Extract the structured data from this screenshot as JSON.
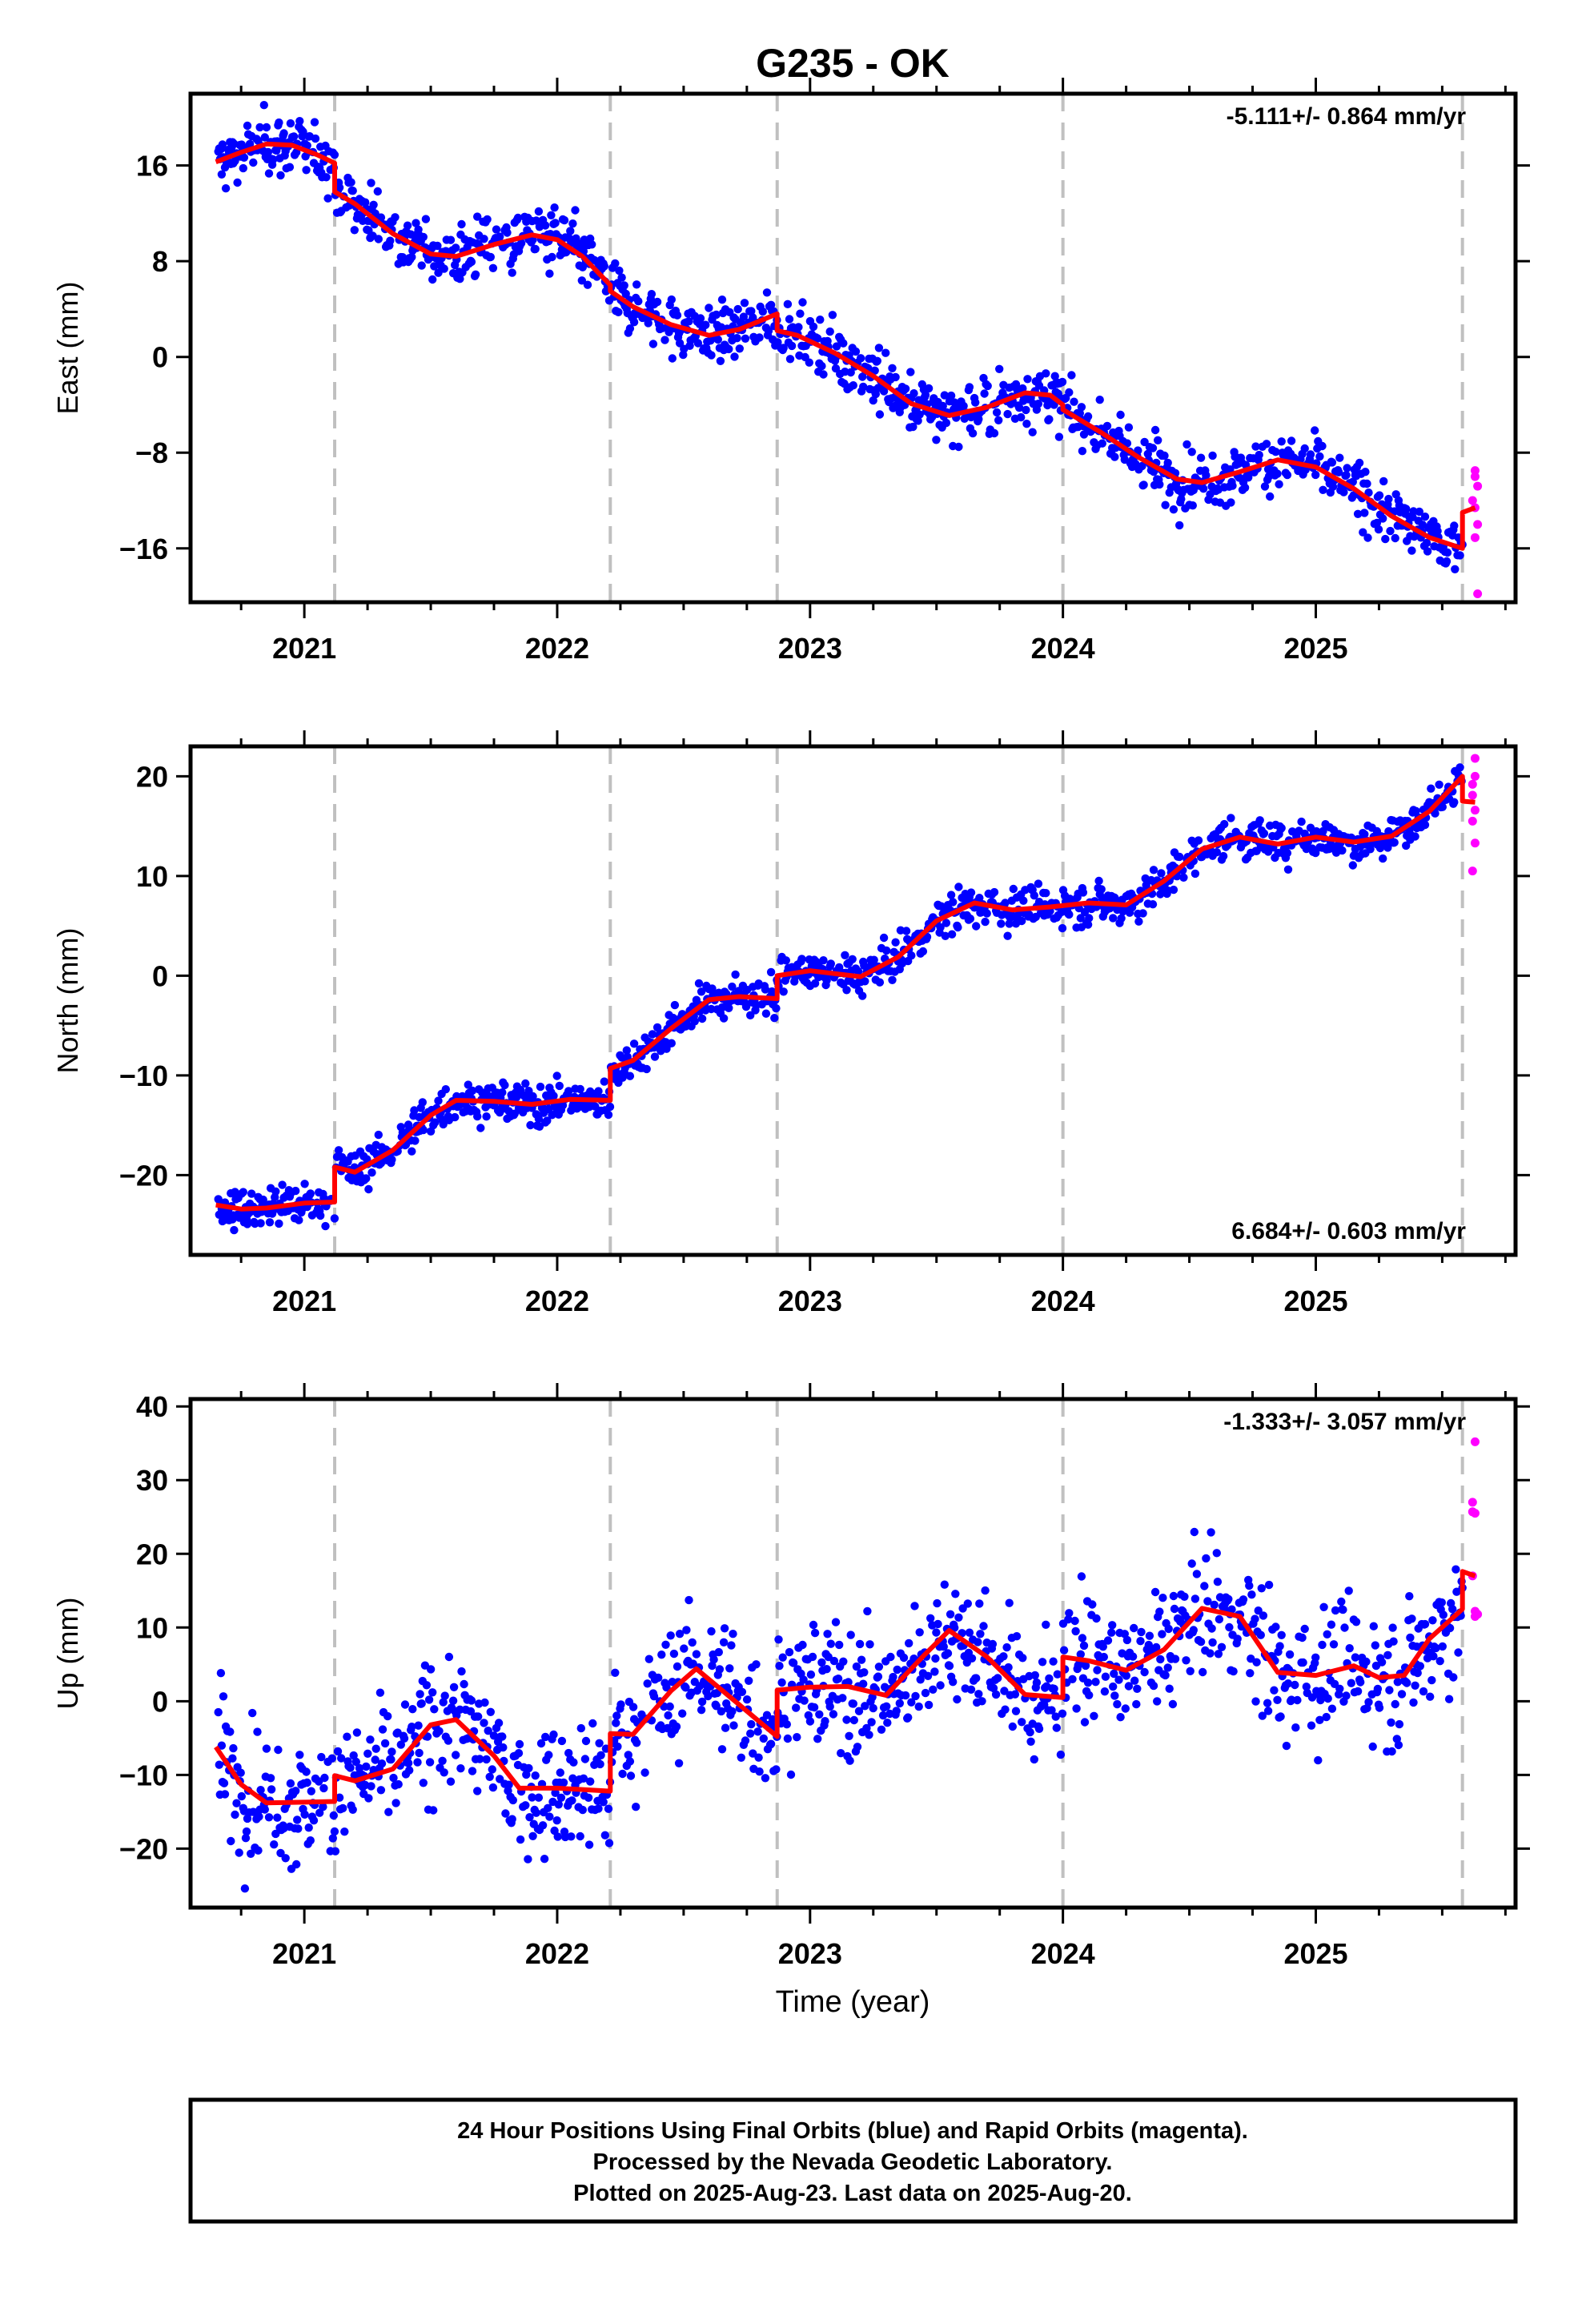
{
  "title": "G235 - OK",
  "x_axis_label": "Time (year)",
  "footer": {
    "line1": "24 Hour Positions Using Final Orbits (blue) and Rapid Orbits (magenta).",
    "line2": "Processed by the Nevada Geodetic Laboratory.",
    "line3": "Plotted on 2025-Aug-23. Last data on 2025-Aug-20."
  },
  "colors": {
    "final_orbits": "#0000ff",
    "rapid_orbits": "#ff00ff",
    "model_fit": "#ff0000",
    "event_lines": "#c0c0c0",
    "frame": "#000000"
  },
  "chart_data": [
    {
      "type": "scatter",
      "component": "East",
      "ylabel": "East (mm)",
      "ylim": [
        -20.5,
        22
      ],
      "yticks": [
        16,
        8,
        0,
        -8,
        -16
      ],
      "xlim": [
        2020.55,
        2025.79
      ],
      "xticks": [
        2021,
        2022,
        2023,
        2024,
        2025
      ],
      "rate_text": "-5.111+/- 0.864 mm/yr",
      "rate_position": "top-right",
      "noise_sd_mm": 1.2,
      "event_lines": [
        2021.12,
        2022.21,
        2022.87,
        2024.0,
        2025.58
      ],
      "model_fit": {
        "x": [
          2020.65,
          2020.75,
          2020.85,
          2020.95,
          2021.05,
          2021.12,
          2021.12,
          2021.2,
          2021.35,
          2021.5,
          2021.6,
          2021.75,
          2021.9,
          2022.0,
          2022.1,
          2022.21,
          2022.21,
          2022.3,
          2022.45,
          2022.6,
          2022.72,
          2022.87,
          2022.87,
          2022.95,
          2023.1,
          2023.25,
          2023.4,
          2023.55,
          2023.7,
          2023.85,
          2023.95,
          2024.0,
          2024.0,
          2024.15,
          2024.3,
          2024.45,
          2024.55,
          2024.7,
          2024.85,
          2025.0,
          2025.15,
          2025.3,
          2025.45,
          2025.58,
          2025.58,
          2025.63
        ],
        "y": [
          16.3,
          17.1,
          17.8,
          17.7,
          16.9,
          16.2,
          13.8,
          12.8,
          10.3,
          8.6,
          8.4,
          9.4,
          10.2,
          9.8,
          8.4,
          6.0,
          5.5,
          4.2,
          2.7,
          1.8,
          2.3,
          3.6,
          2.2,
          1.8,
          0.3,
          -1.6,
          -3.9,
          -4.9,
          -4.2,
          -3.0,
          -3.2,
          -4.0,
          -4.4,
          -6.3,
          -8.4,
          -10.2,
          -10.5,
          -9.6,
          -8.6,
          -9.2,
          -11.0,
          -13.3,
          -15.1,
          -16.0,
          -13.0,
          -12.6
        ]
      },
      "rapid_orbits": {
        "x": [
          2025.63,
          2025.63,
          2025.64,
          2025.62,
          2025.64,
          2025.63,
          2025.64,
          2025.63
        ],
        "y": [
          -9.5,
          -10.0,
          -10.8,
          -12.0,
          -14.0,
          -15.1,
          -19.8,
          -12.6
        ]
      }
    },
    {
      "type": "scatter",
      "component": "North",
      "ylabel": "North (mm)",
      "ylim": [
        -28,
        23
      ],
      "yticks": [
        20,
        10,
        0,
        -10,
        -20
      ],
      "xlim": [
        2020.55,
        2025.79
      ],
      "xticks": [
        2021,
        2022,
        2023,
        2024,
        2025
      ],
      "rate_text": "6.684+/- 0.603 mm/yr",
      "rate_position": "bottom-right",
      "noise_sd_mm": 1.0,
      "event_lines": [
        2021.12,
        2022.21,
        2022.87,
        2024.0,
        2025.58
      ],
      "model_fit": {
        "x": [
          2020.65,
          2020.75,
          2020.85,
          2021.0,
          2021.12,
          2021.12,
          2021.2,
          2021.35,
          2021.5,
          2021.6,
          2021.75,
          2021.9,
          2022.05,
          2022.21,
          2022.21,
          2022.3,
          2022.45,
          2022.6,
          2022.72,
          2022.87,
          2022.87,
          2023.0,
          2023.2,
          2023.35,
          2023.5,
          2023.65,
          2023.8,
          2023.95,
          2024.1,
          2024.25,
          2024.4,
          2024.55,
          2024.7,
          2024.85,
          2025.0,
          2025.15,
          2025.3,
          2025.45,
          2025.58,
          2025.58,
          2025.63
        ],
        "y": [
          -23.0,
          -23.4,
          -23.3,
          -22.8,
          -22.7,
          -19.2,
          -19.7,
          -17.5,
          -14.0,
          -12.5,
          -12.6,
          -12.9,
          -12.4,
          -12.5,
          -9.3,
          -8.5,
          -5.3,
          -2.4,
          -2.1,
          -2.3,
          0.0,
          0.5,
          -0.1,
          1.9,
          5.5,
          7.3,
          6.6,
          6.9,
          7.3,
          7.1,
          9.5,
          12.7,
          13.9,
          13.2,
          13.9,
          13.4,
          14.0,
          16.5,
          20.0,
          17.5,
          17.4
        ]
      },
      "rapid_orbits": {
        "x": [
          2025.63,
          2025.63,
          2025.62,
          2025.62,
          2025.63,
          2025.62,
          2025.63,
          2025.62
        ],
        "y": [
          21.8,
          20.0,
          19.2,
          18.1,
          16.6,
          15.5,
          13.3,
          10.5
        ]
      }
    },
    {
      "type": "scatter",
      "component": "Up",
      "ylabel": "Up (mm)",
      "ylim": [
        -28,
        41
      ],
      "yticks": [
        40,
        30,
        20,
        10,
        0,
        -10,
        -20
      ],
      "xlim": [
        2020.55,
        2025.79
      ],
      "xticks": [
        2021,
        2022,
        2023,
        2024,
        2025
      ],
      "rate_text": "-1.333+/- 3.057 mm/yr",
      "rate_position": "top-right",
      "noise_sd_mm": 4.3,
      "event_lines": [
        2021.12,
        2022.21,
        2022.87,
        2024.0,
        2025.58
      ],
      "model_fit": {
        "x": [
          2020.65,
          2020.75,
          2020.85,
          2021.0,
          2021.12,
          2021.12,
          2021.2,
          2021.35,
          2021.5,
          2021.6,
          2021.75,
          2021.85,
          2022.0,
          2022.21,
          2022.21,
          2022.3,
          2022.45,
          2022.55,
          2022.7,
          2022.87,
          2022.87,
          2023.0,
          2023.15,
          2023.3,
          2023.45,
          2023.55,
          2023.7,
          2023.85,
          2024.0,
          2024.0,
          2024.1,
          2024.25,
          2024.4,
          2024.55,
          2024.7,
          2024.85,
          2025.0,
          2025.15,
          2025.25,
          2025.35,
          2025.45,
          2025.58,
          2025.58,
          2025.63
        ],
        "y": [
          -6.2,
          -11.3,
          -13.8,
          -13.7,
          -13.6,
          -10.1,
          -10.8,
          -9.2,
          -3.2,
          -2.5,
          -7.4,
          -11.8,
          -11.8,
          -12.2,
          -4.4,
          -4.5,
          1.4,
          4.4,
          0.1,
          -4.8,
          1.5,
          1.9,
          2.0,
          0.8,
          6.2,
          9.6,
          6.0,
          0.9,
          0.5,
          6.0,
          5.5,
          4.2,
          7.0,
          12.6,
          11.5,
          3.9,
          3.5,
          4.8,
          3.2,
          3.5,
          8.5,
          12.5,
          17.6,
          17.0
        ]
      },
      "rapid_orbits": {
        "x": [
          2025.63,
          2025.62,
          2025.63,
          2025.62,
          2025.63,
          2025.63,
          2025.62,
          2025.64
        ],
        "y": [
          35.2,
          27.0,
          25.5,
          25.7,
          12.2,
          11.5,
          17.0,
          11.8
        ]
      }
    }
  ]
}
